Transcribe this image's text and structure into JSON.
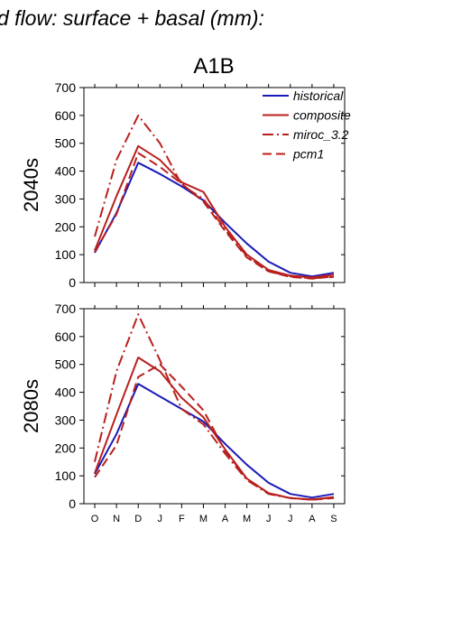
{
  "header": {
    "title": "d flow: surface + basal (mm):",
    "subtitle": "A1B"
  },
  "colors": {
    "historical": "#1a1ab8",
    "model": "#b8201e",
    "axis": "#000000"
  },
  "chart_data": [
    {
      "type": "line",
      "panel_label": "2040s",
      "ylim": [
        0,
        700
      ],
      "yticks": [
        "0",
        "100",
        "200",
        "300",
        "400",
        "500",
        "600",
        "700"
      ],
      "categories": [
        "O",
        "N",
        "D",
        "J",
        "F",
        "M",
        "A",
        "M",
        "J",
        "J",
        "A",
        "S"
      ],
      "legend": {
        "placement": "top-right"
      },
      "series": [
        {
          "name": "historical",
          "style": "solid",
          "color": "#1a1ab8",
          "values": [
            107,
            250,
            430,
            390,
            345,
            295,
            215,
            140,
            75,
            35,
            22,
            35
          ]
        },
        {
          "name": "composite",
          "style": "solid",
          "color": "#b8201e",
          "values": [
            115,
            310,
            490,
            440,
            360,
            325,
            200,
            100,
            45,
            25,
            18,
            28
          ]
        },
        {
          "name": "miroc_3.2",
          "style": "dashdot",
          "color": "#b8201e",
          "values": [
            165,
            440,
            600,
            500,
            350,
            300,
            190,
            95,
            40,
            22,
            15,
            20
          ]
        },
        {
          "name": "pcm1",
          "style": "dashed",
          "color": "#b8201e",
          "values": [
            110,
            245,
            465,
            415,
            355,
            290,
            185,
            90,
            40,
            20,
            14,
            22
          ]
        }
      ]
    },
    {
      "type": "line",
      "panel_label": "2080s",
      "ylim": [
        0,
        700
      ],
      "yticks": [
        "0",
        "100",
        "200",
        "300",
        "400",
        "500",
        "600",
        "700"
      ],
      "categories": [
        "O",
        "N",
        "D",
        "J",
        "F",
        "M",
        "A",
        "M",
        "J",
        "J",
        "A",
        "S"
      ],
      "series": [
        {
          "name": "historical",
          "style": "solid",
          "color": "#1a1ab8",
          "values": [
            107,
            250,
            430,
            385,
            340,
            295,
            215,
            140,
            75,
            35,
            22,
            35
          ]
        },
        {
          "name": "composite",
          "style": "solid",
          "color": "#b8201e",
          "values": [
            110,
            320,
            525,
            475,
            380,
            310,
            195,
            90,
            38,
            20,
            15,
            24
          ]
        },
        {
          "name": "miroc_3.2",
          "style": "dashdot",
          "color": "#b8201e",
          "values": [
            150,
            475,
            680,
            515,
            340,
            285,
            180,
            85,
            35,
            20,
            15,
            22
          ]
        },
        {
          "name": "pcm1",
          "style": "dashed",
          "color": "#b8201e",
          "values": [
            95,
            210,
            455,
            500,
            420,
            335,
            190,
            90,
            38,
            20,
            14,
            20
          ]
        }
      ]
    }
  ]
}
